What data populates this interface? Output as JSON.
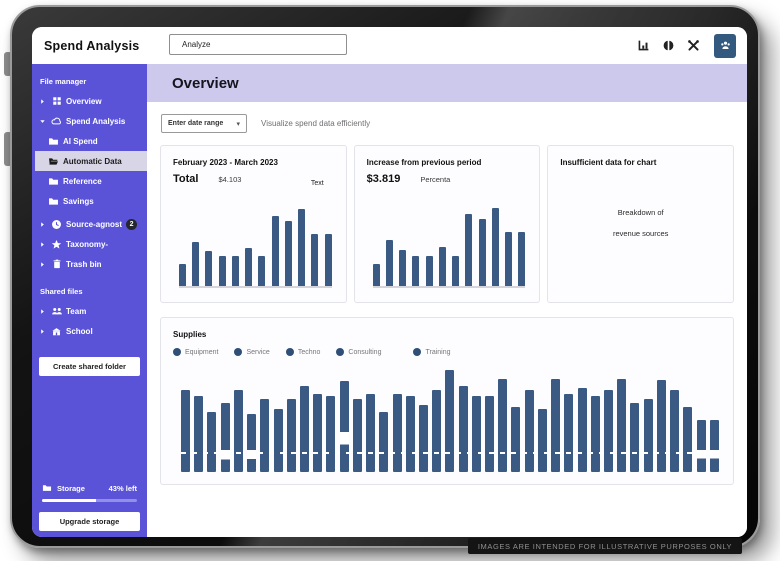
{
  "topbar": {
    "title": "Spend Analysis",
    "search_value": "Analyze",
    "icons": [
      "analytics-icon",
      "contrast-icon",
      "tools-icon",
      "user-group-icon"
    ],
    "accent_color": "#34597f"
  },
  "sidebar": {
    "color": "#5a53d8",
    "sections": [
      {
        "label": "File manager"
      },
      {
        "label": "Shared files"
      }
    ],
    "items": [
      {
        "label": "Overview",
        "icon": "grid-icon",
        "chevron": "right"
      },
      {
        "label": "Spend Analysis",
        "icon": "cloud-icon",
        "chevron": "down"
      },
      {
        "label": "AI Spend",
        "icon": "folder-icon"
      },
      {
        "label": "Automatic Data",
        "icon": "folder-open-icon",
        "selected": true
      },
      {
        "label": "Reference",
        "icon": "folder-icon"
      },
      {
        "label": "Savings",
        "icon": "folder-icon"
      },
      {
        "label": "Source-agnost",
        "icon": "clock-icon",
        "chevron": "right",
        "badge": "2"
      },
      {
        "label": "Taxonomy-",
        "icon": "star-icon",
        "chevron": "right"
      },
      {
        "label": "Trash bin",
        "icon": "trash-icon",
        "chevron": "right"
      }
    ],
    "shared_items": [
      {
        "label": "Team",
        "icon": "team-icon",
        "chevron": "right"
      },
      {
        "label": "School",
        "icon": "school-icon",
        "chevron": "right"
      }
    ],
    "create_folder_button": "Create shared folder",
    "storage": {
      "label": "Storage",
      "remaining": "43% left",
      "used_pct": 57
    },
    "upgrade_button": "Upgrade storage"
  },
  "main": {
    "page_title": "Overview",
    "date_range_value": "Enter date range",
    "subtitle": "Visualize spend data efficiently",
    "empty_card": {
      "title": "Insufficient data for chart",
      "line1": "Breakdown of",
      "line2": "revenue sources"
    }
  },
  "footer": {
    "disclaimer": "IMAGES ARE INTENDED FOR ILLUSTRATIVE PURPOSES ONLY"
  },
  "chart_data": [
    {
      "type": "bar",
      "title": "February 2023 - March 2023",
      "stat_primary": "Total",
      "stat_secondary": "$4.103",
      "annotation": "Text",
      "bar_color": "#3b5a83",
      "ylim": [
        0,
        100
      ],
      "values": [
        28,
        55,
        44,
        37,
        37,
        48,
        37,
        88,
        81,
        96,
        65,
        65
      ]
    },
    {
      "type": "bar",
      "title": "Increase from previous period",
      "stat_primary": "$3.819",
      "stat_secondary": "Percenta",
      "bar_color": "#3b5a83",
      "ylim": [
        0,
        100
      ],
      "values": [
        28,
        57,
        45,
        38,
        38,
        49,
        38,
        90,
        84,
        97,
        67,
        67
      ]
    },
    {
      "type": "bar",
      "title": "Supplies",
      "legend": [
        "Equipment",
        "Service",
        "Techno",
        "Consulting",
        "Training"
      ],
      "bar_color": "#3b5a83",
      "ylim": [
        0,
        100
      ],
      "values": [
        76,
        70,
        56,
        64,
        76,
        54,
        68,
        58,
        68,
        80,
        72,
        70,
        84,
        68,
        72,
        56,
        72,
        70,
        62,
        76,
        94,
        80,
        70,
        70,
        86,
        60,
        76,
        58,
        86,
        72,
        78,
        70,
        76,
        86,
        64,
        68,
        85,
        76,
        60,
        48,
        48
      ],
      "gaps": {
        "3": [
          18,
          14
        ],
        "5": [
          22,
          16
        ],
        "12": [
          30,
          14
        ],
        "39": [
          26,
          16
        ],
        "40": [
          26,
          16
        ]
      }
    }
  ]
}
